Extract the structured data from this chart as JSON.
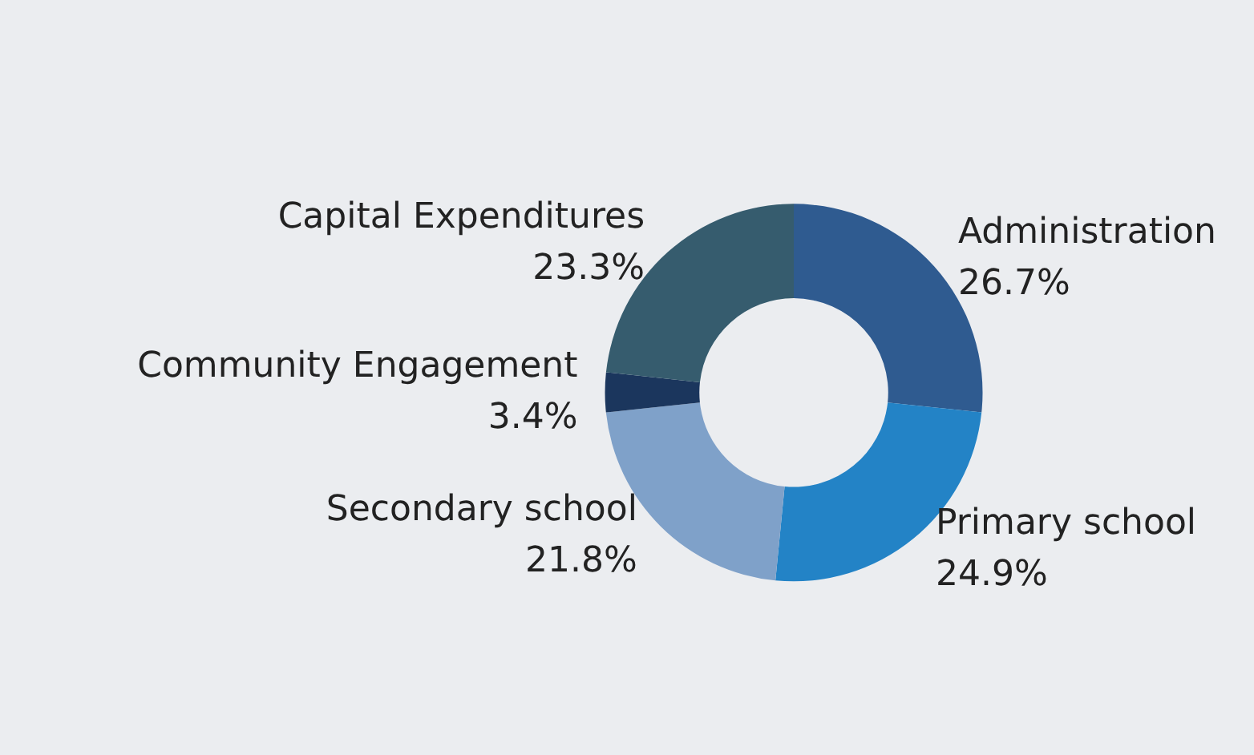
{
  "chart_data": {
    "type": "donut",
    "categories": [
      "Administration",
      "Primary school",
      "Secondary school",
      "Community Engagement",
      "Capital Expenditures"
    ],
    "values": [
      26.7,
      24.9,
      21.8,
      3.4,
      23.3
    ],
    "value_labels": [
      "26.7%",
      "24.9%",
      "21.8%",
      "3.4%",
      "23.3%"
    ],
    "colors": [
      "#2f5b90",
      "#2383c6",
      "#7fa1c9",
      "#1b365d",
      "#365c6e"
    ],
    "legend": false
  }
}
